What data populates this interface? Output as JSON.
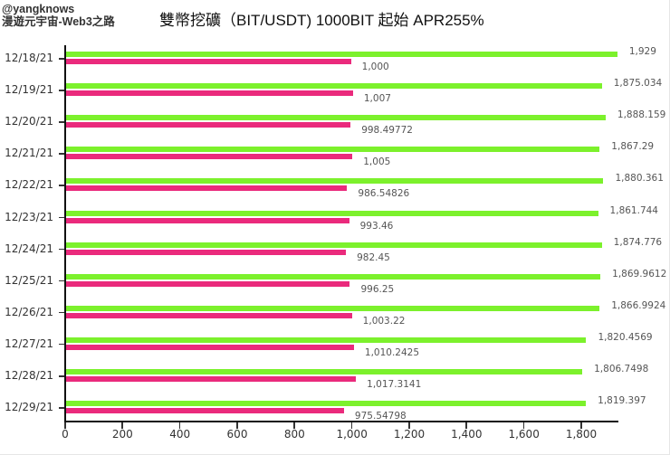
{
  "author": {
    "line1": "@yangknows",
    "line2": "漫遊元宇宙-Web3之路"
  },
  "chart_data": {
    "type": "bar",
    "orientation": "horizontal",
    "title": "雙幣挖礦（BIT/USDT) 1000BIT 起始 APR255%",
    "xlabel": "",
    "ylabel": "",
    "xlim": [
      0,
      1900
    ],
    "grid": false,
    "legend": null,
    "categories": [
      "12/18/21",
      "12/19/21",
      "12/20/21",
      "12/21/21",
      "12/22/21",
      "12/23/21",
      "12/24/21",
      "12/25/21",
      "12/26/21",
      "12/27/21",
      "12/28/21",
      "12/29/21"
    ],
    "x_ticks": [
      "0",
      "200",
      "400",
      "600",
      "800",
      "1,000",
      "1,200",
      "1,400",
      "1,600",
      "1,800"
    ],
    "series": [
      {
        "name": "green",
        "color": "#7cf12c",
        "values": [
          1929,
          1875.034,
          1888.159,
          1867.29,
          1880.361,
          1861.744,
          1874.776,
          1869.9612,
          1866.9924,
          1820.4569,
          1806.7498,
          1819.397
        ],
        "labels": [
          "1,929",
          "1,875.034",
          "1,888.159",
          "1,867.29",
          "1,880.361",
          "1,861.744",
          "1,874.776",
          "1,869.9612",
          "1,866.9924",
          "1,820.4569",
          "1,806.7498",
          "1,819.397"
        ]
      },
      {
        "name": "pink",
        "color": "#ea2a7c",
        "values": [
          1000,
          1007,
          998.49772,
          1005,
          986.54826,
          993.46,
          982.45,
          996.25,
          1003.22,
          1010.2425,
          1017.3141,
          975.54798
        ],
        "labels": [
          "1,000",
          "1,007",
          "998.49772",
          "1,005",
          "986.54826",
          "993.46",
          "982.45",
          "996.25",
          "1,003.22",
          "1,010.2425",
          "1,017.3141",
          "975.54798"
        ]
      }
    ]
  }
}
